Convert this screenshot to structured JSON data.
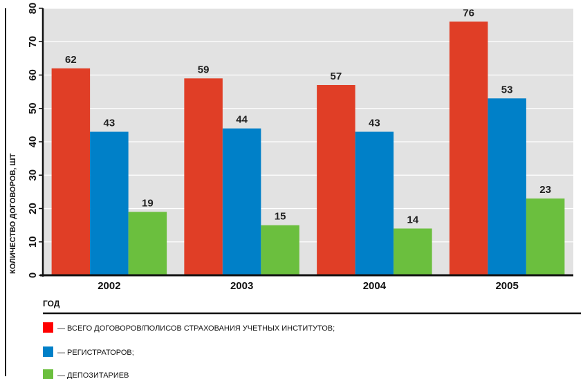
{
  "chart_data": {
    "type": "bar",
    "categories": [
      "2002",
      "2003",
      "2004",
      "2005"
    ],
    "series": [
      {
        "name": "— ВСЕГО ДОГОВОРОВ/ПОЛИСОВ СТРАХОВАНИЯ УЧЕТНЫХ ИНСТИТУТОВ;",
        "color": "#e03e26",
        "values": [
          62,
          59,
          57,
          76
        ]
      },
      {
        "name": "— РЕГИСТРАТОРОВ;",
        "color": "#0080c8",
        "values": [
          43,
          44,
          43,
          53
        ]
      },
      {
        "name": "— ДЕПОЗИТАРИЕВ",
        "color": "#6bbf3e",
        "values": [
          19,
          15,
          14,
          23
        ]
      }
    ],
    "ylabel": "КОЛИЧЕСТВО ДОГОВОРОВ, ШТ",
    "xlabel": "ГОД",
    "ylim": [
      0,
      80
    ],
    "yticks": [
      0,
      10,
      20,
      30,
      40,
      50,
      60,
      70,
      80
    ],
    "grid": true,
    "legend_position": "bottom-left",
    "plot_background": "#e2e2e2",
    "show_value_labels": true
  }
}
